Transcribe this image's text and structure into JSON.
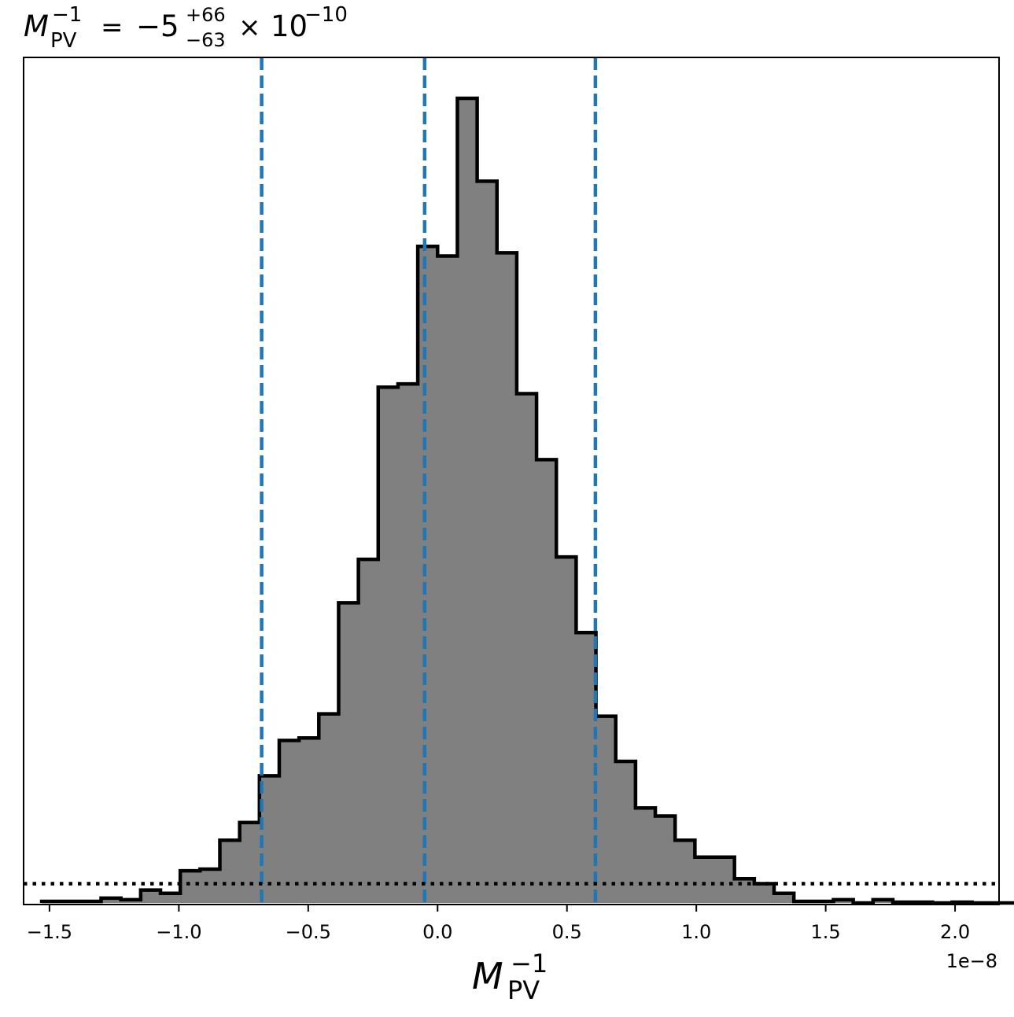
{
  "chart_data": {
    "type": "histogram",
    "title": {
      "symbol": "M",
      "symbol_sub": "PV",
      "symbol_sup": "−1",
      "equals": "=",
      "value": "−5",
      "err_plus": "+66",
      "err_minus": "−63",
      "times": "×",
      "base": "10",
      "exponent": "−10"
    },
    "xlabel": {
      "symbol": "M",
      "sub": "PV",
      "sup": "−1"
    },
    "ylabel": "",
    "x_offset_label": "1e−8",
    "x_scale": 1e-08,
    "xlim": [
      -1.6,
      2.17
    ],
    "ylim": [
      0,
      1.0
    ],
    "grid": false,
    "y_ticks_visible": false,
    "xticks": [
      {
        "value": -1.5,
        "label": "−1.5"
      },
      {
        "value": -1.0,
        "label": "−1.0"
      },
      {
        "value": -0.5,
        "label": "−0.5"
      },
      {
        "value": 0.0,
        "label": "0.0"
      },
      {
        "value": 0.5,
        "label": "0.5"
      },
      {
        "value": 1.0,
        "label": "1.0"
      },
      {
        "value": 1.5,
        "label": "1.5"
      },
      {
        "value": 2.0,
        "label": "2.0"
      }
    ],
    "bins": {
      "start": -1.53,
      "width": 0.0765,
      "heights": [
        0.002,
        0.002,
        0.002,
        0.006,
        0.004,
        0.016,
        0.012,
        0.04,
        0.042,
        0.078,
        0.1,
        0.158,
        0.202,
        0.205,
        0.235,
        0.373,
        0.427,
        0.641,
        0.645,
        0.816,
        0.804,
        1.0,
        0.897,
        0.808,
        0.633,
        0.551,
        0.43,
        0.336,
        0.232,
        0.176,
        0.118,
        0.108,
        0.078,
        0.057,
        0.057,
        0.03,
        0.024,
        0.012,
        0.002,
        0.002,
        0.004,
        0.0,
        0.004,
        0.001,
        0.001,
        0.0,
        0.001,
        0.0,
        0.0,
        0.0
      ]
    },
    "fill_color": "#808080",
    "edge_color": "#000000",
    "vertical_lines": {
      "values": [
        -0.68,
        -0.05,
        0.61
      ],
      "style": "dashed",
      "color": "#1f77b4"
    },
    "horizontal_line": {
      "value": 0.024,
      "style": "dotted",
      "color": "#000000"
    }
  }
}
